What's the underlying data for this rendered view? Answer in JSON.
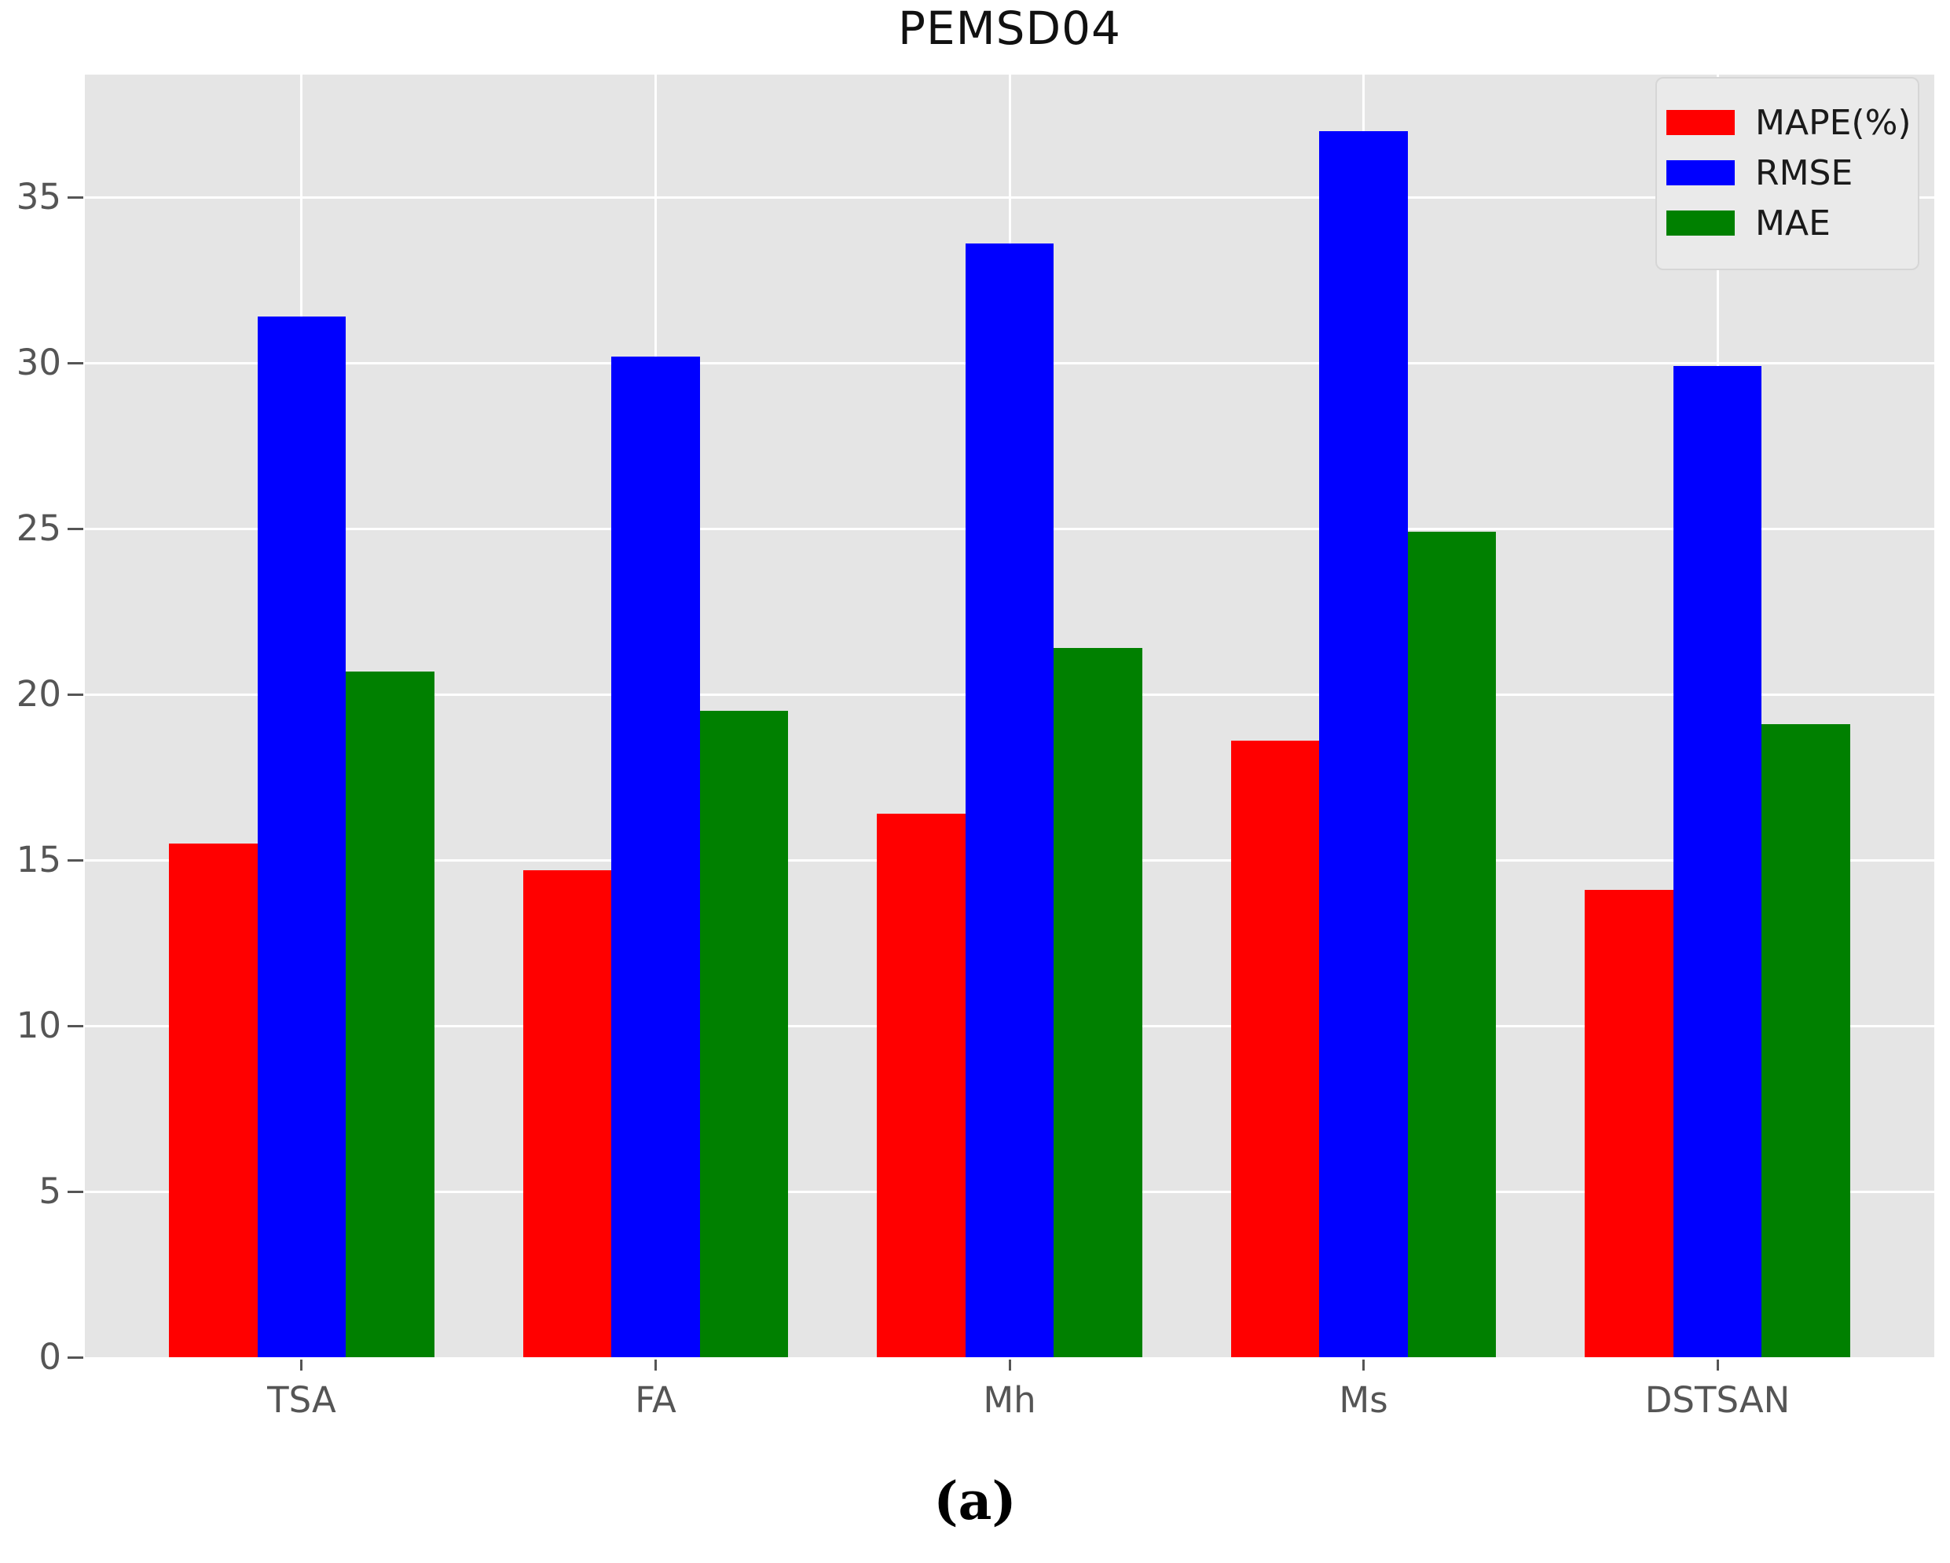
{
  "chart": {
    "title": "PEMSD04",
    "caption": "(a)"
  },
  "chart_data": {
    "type": "bar",
    "title": "PEMSD04",
    "categories": [
      "TSA",
      "FA",
      "Mh",
      "Ms",
      "DSTSAN"
    ],
    "series": [
      {
        "name": "MAPE(%)",
        "color": "#ff0000",
        "values": [
          15.5,
          14.7,
          16.4,
          18.6,
          14.1
        ]
      },
      {
        "name": "RMSE",
        "color": "#0000ff",
        "values": [
          31.4,
          30.2,
          33.6,
          37.0,
          29.9
        ]
      },
      {
        "name": "MAE",
        "color": "#008000",
        "values": [
          20.7,
          19.5,
          21.4,
          24.9,
          19.1
        ]
      }
    ],
    "xlabel": "",
    "ylabel": "",
    "ylim": [
      0,
      38.7
    ],
    "yticks": [
      0,
      5,
      10,
      15,
      20,
      25,
      30,
      35
    ],
    "grid": true,
    "legend_position": "upper right",
    "plot_bg_color": "#e5e5e5",
    "grid_color": "#ffffff",
    "tick_color": "#555555"
  }
}
